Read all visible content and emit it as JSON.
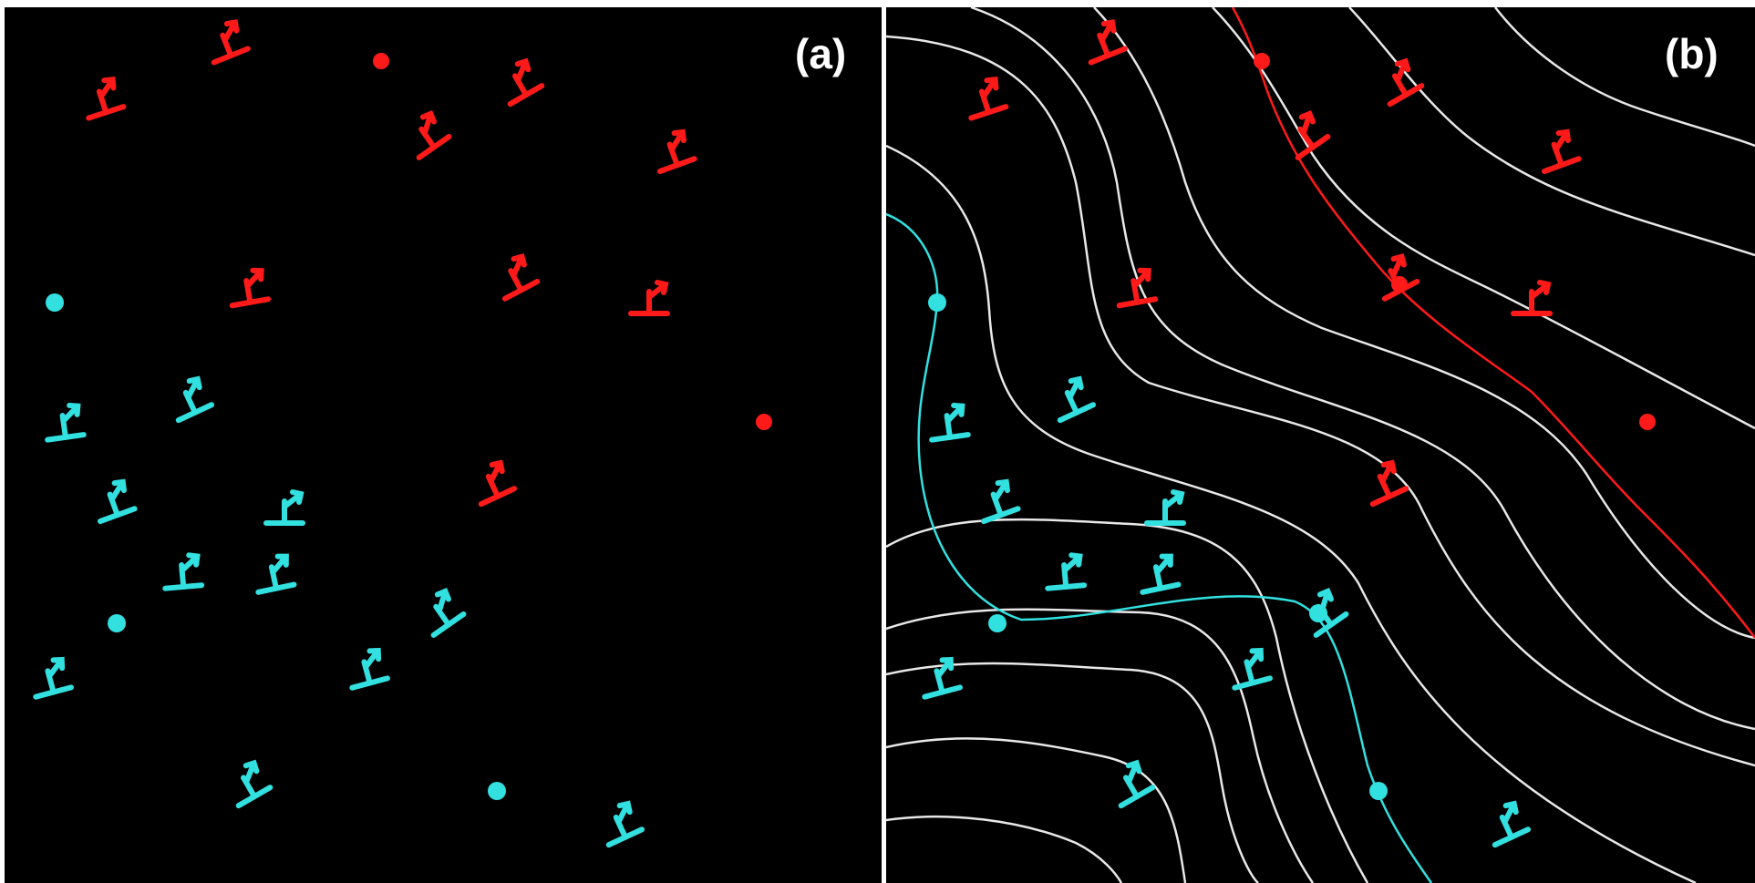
{
  "figure": {
    "panels": [
      {
        "label": "(a)"
      },
      {
        "label": "(b)"
      }
    ],
    "colors": {
      "background": "#000000",
      "frame": "#ffffff",
      "upper_group": "#ff1a1a",
      "lower_group": "#33e0e0",
      "contour": "#e8e8e8"
    },
    "symbols": {
      "dislocation_glyph": "perpendicular-with-arrow-icon",
      "point_marker": "filled-dot-icon"
    }
  }
}
